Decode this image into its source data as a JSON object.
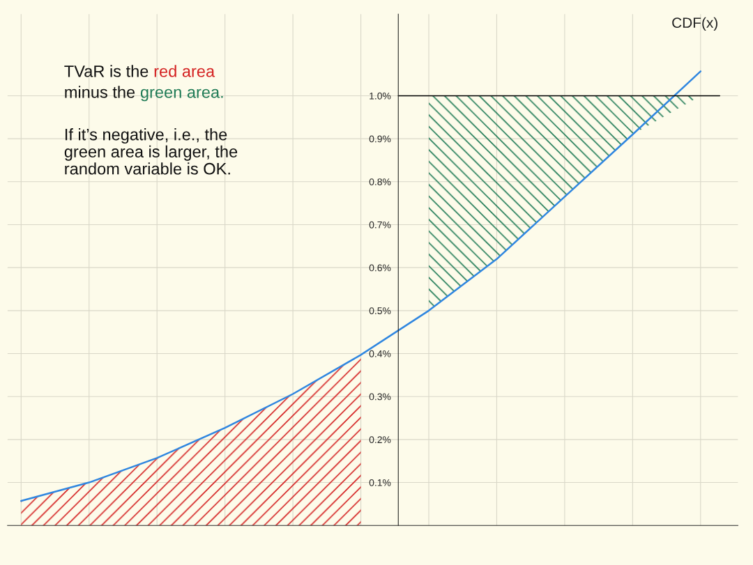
{
  "chart_data": {
    "type": "line",
    "categories": [
      null,
      null,
      null,
      null,
      null,
      null,
      null,
      null,
      null,
      null,
      null
    ],
    "series": [
      {
        "name": "CDF(x)",
        "color": "#2f86e0",
        "values": [
          0.057,
          0.1,
          0.157,
          0.227,
          0.306,
          0.397,
          0.5,
          0.62,
          0.765,
          0.91,
          1.057
        ]
      },
      {
        "type": "area",
        "color": "#d42020",
        "values": [
          0.057,
          0.1,
          0.157,
          0.227,
          0.306,
          0.397,
          null,
          null,
          null,
          null,
          null
        ]
      },
      {
        "type": "area",
        "color": "#1e7a55",
        "values": [
          null,
          null,
          null,
          null,
          null,
          null,
          1.0,
          1.0,
          1.0,
          1.0,
          1.0
        ]
      }
    ],
    "ylim": [
      0,
      1.19
    ],
    "yticks": [
      {
        "value": 0.1,
        "label": "0.1%"
      },
      {
        "value": 0.2,
        "label": "0.2%"
      },
      {
        "value": 0.3,
        "label": "0.3%"
      },
      {
        "value": 0.4,
        "label": "0.4%"
      },
      {
        "value": 0.5,
        "label": "0.5%"
      },
      {
        "value": 0.6,
        "label": "0.6%"
      },
      {
        "value": 0.7,
        "label": "0.7%"
      },
      {
        "value": 0.8,
        "label": "0.8%"
      },
      {
        "value": 0.9,
        "label": "0.9%"
      },
      {
        "value": 1.0,
        "label": "1.0%"
      }
    ],
    "ref_lines": [
      {
        "axis": "y",
        "value": 1.0,
        "color": "#000000"
      }
    ],
    "tick_labels": "y",
    "grid": true,
    "annotations": [
      "TVaR is the ",
      "red area",
      "minus the ",
      "green area.",
      "If it’s negative, i.e., the\ngreen area is larger, the\nrandom variable is OK."
    ]
  }
}
